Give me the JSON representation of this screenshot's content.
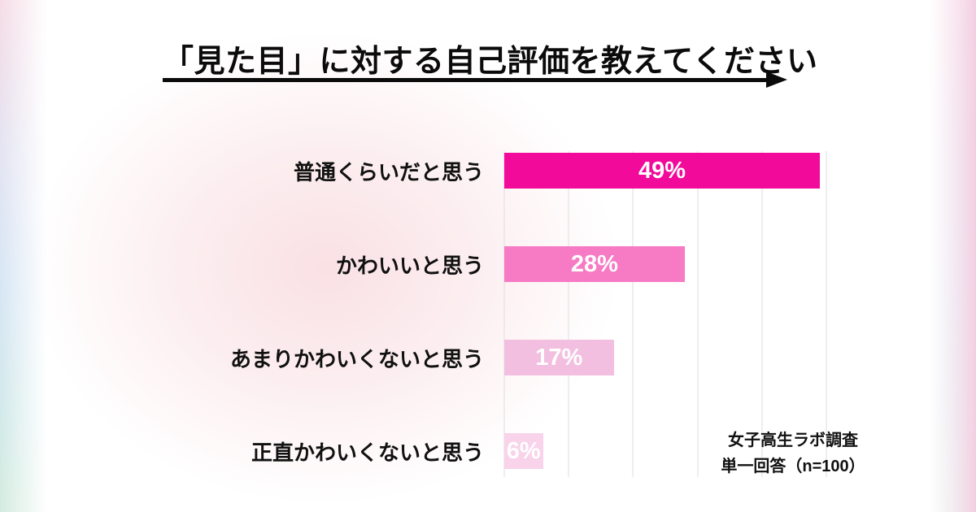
{
  "title": "「見た目」に対する自己評価を教えてください",
  "chart_data": {
    "type": "bar",
    "orientation": "horizontal",
    "title": "「見た目」に対する自己評価を教えてください",
    "categories": [
      "普通くらいだと思う",
      "かわいいと思う",
      "あまりかわいくないと思う",
      "正直かわいくないと思う"
    ],
    "values": [
      49,
      28,
      17,
      6
    ],
    "value_labels": [
      "49%",
      "28%",
      "17%",
      "6%"
    ],
    "bar_colors": [
      "#f20a9a",
      "#f67ac4",
      "#f3bfe0",
      "#f8d3ea"
    ],
    "xlim": [
      0,
      50
    ],
    "gridline_values": [
      0,
      10,
      20,
      30,
      40,
      50
    ],
    "grid": true,
    "legend": false
  },
  "source_note": {
    "line1": "女子高生ラボ調査",
    "line2": "単一回答（n=100）"
  },
  "colors": {
    "accent_magenta": "#f20a9a",
    "text": "#111111",
    "gridline": "#dedede"
  }
}
